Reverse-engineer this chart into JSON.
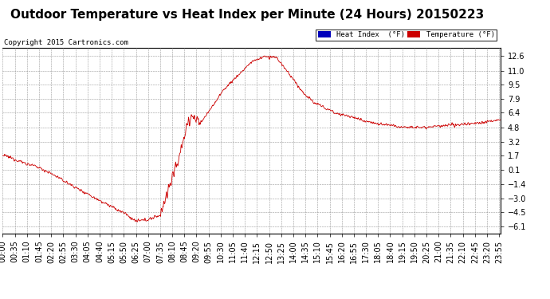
{
  "title": "Outdoor Temperature vs Heat Index per Minute (24 Hours) 20150223",
  "copyright": "Copyright 2015 Cartronics.com",
  "legend_heat": "Heat Index  (°F)",
  "legend_temp": "Temperature (°F)",
  "legend_heat_bg": "#0000bb",
  "legend_temp_bg": "#cc0000",
  "yticks": [
    12.6,
    11.0,
    9.5,
    7.9,
    6.4,
    4.8,
    3.2,
    1.7,
    0.1,
    -1.4,
    -3.0,
    -4.5,
    -6.1
  ],
  "ylim_min": -6.8,
  "ylim_max": 13.5,
  "line_color": "#cc0000",
  "bg_color": "#ffffff",
  "plot_bg": "#ffffff",
  "grid_color": "#999999",
  "title_fontsize": 11,
  "tick_fontsize": 7,
  "waypoints_x": [
    0,
    35,
    70,
    105,
    140,
    175,
    210,
    245,
    280,
    315,
    350,
    385,
    420,
    455,
    475,
    500,
    510,
    520,
    535,
    550,
    570,
    600,
    640,
    680,
    720,
    760,
    770,
    790,
    810,
    840,
    870,
    900,
    960,
    1020,
    1080,
    1140,
    1200,
    1260,
    1320,
    1380,
    1435
  ],
  "waypoints_y": [
    1.7,
    1.3,
    0.8,
    0.4,
    -0.3,
    -1.0,
    -1.8,
    -2.5,
    -3.2,
    -3.9,
    -4.6,
    -5.5,
    -5.3,
    -4.8,
    -2.5,
    0.5,
    1.5,
    3.0,
    5.5,
    6.0,
    5.2,
    6.8,
    9.0,
    10.5,
    12.0,
    12.6,
    12.4,
    12.5,
    11.5,
    10.0,
    8.5,
    7.5,
    6.4,
    5.8,
    5.2,
    4.9,
    4.8,
    4.9,
    5.1,
    5.3,
    5.6
  ],
  "xtick_labels": [
    "00:00",
    "00:35",
    "01:10",
    "01:45",
    "02:20",
    "02:55",
    "03:30",
    "04:05",
    "04:40",
    "05:15",
    "05:50",
    "06:25",
    "07:00",
    "07:35",
    "08:10",
    "08:45",
    "09:20",
    "09:55",
    "10:30",
    "11:05",
    "11:40",
    "12:15",
    "12:50",
    "13:25",
    "14:00",
    "14:35",
    "15:10",
    "15:45",
    "16:20",
    "16:55",
    "17:30",
    "18:05",
    "18:40",
    "19:15",
    "19:50",
    "20:25",
    "21:00",
    "21:35",
    "22:10",
    "22:45",
    "23:20",
    "23:55"
  ]
}
